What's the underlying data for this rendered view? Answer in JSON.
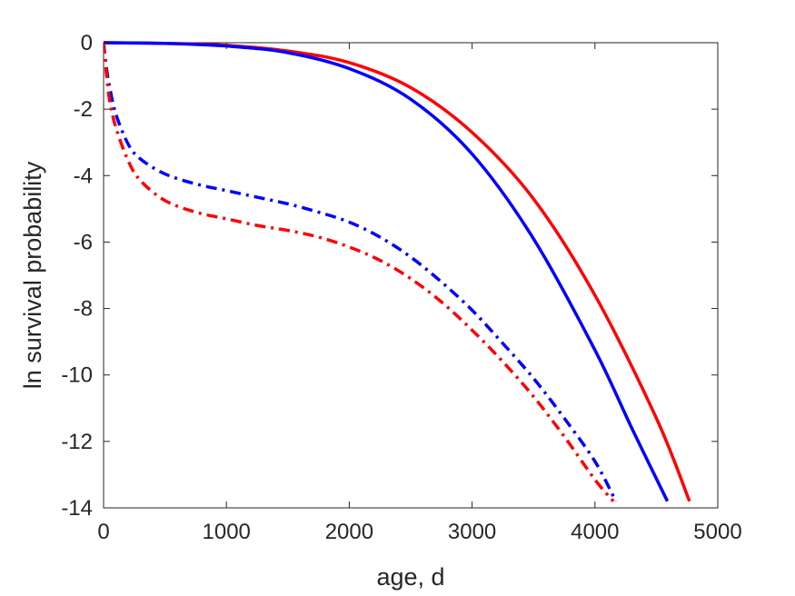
{
  "chart_data": {
    "type": "line",
    "title": "",
    "xlabel": "age, d",
    "ylabel": "ln survival probability",
    "xlim": [
      0,
      5000
    ],
    "ylim": [
      -14,
      0
    ],
    "xticks": [
      0,
      1000,
      2000,
      3000,
      4000,
      5000
    ],
    "yticks": [
      0,
      -2,
      -4,
      -6,
      -8,
      -10,
      -12,
      -14
    ],
    "xtick_labels": [
      "0",
      "1000",
      "2000",
      "3000",
      "4000",
      "5000"
    ],
    "ytick_labels": [
      "0",
      "-2",
      "-4",
      "-6",
      "-8",
      "-10",
      "-12",
      "-14"
    ],
    "grid": false,
    "legend": "none",
    "series": [
      {
        "color": "#ff0000",
        "style": "solid",
        "x": [
          0,
          500,
          1000,
          1500,
          2000,
          2500,
          3000,
          3500,
          4000,
          4500,
          4770
        ],
        "y": [
          0,
          -0.02,
          -0.08,
          -0.25,
          -0.6,
          -1.35,
          -2.7,
          -4.7,
          -7.6,
          -11.3,
          -13.8
        ]
      },
      {
        "color": "#0000ff",
        "style": "solid",
        "x": [
          0,
          500,
          1000,
          1500,
          2000,
          2500,
          3000,
          3500,
          4000,
          4300,
          4590
        ],
        "y": [
          0,
          -0.02,
          -0.1,
          -0.3,
          -0.78,
          -1.7,
          -3.35,
          -5.9,
          -9.25,
          -11.6,
          -13.8
        ]
      },
      {
        "color": "#0000ff",
        "style": "dashdot",
        "x": [
          0,
          25,
          50,
          100,
          200,
          300,
          500,
          750,
          1000,
          1250,
          1500,
          1750,
          2000,
          2250,
          2500,
          2750,
          3000,
          3250,
          3500,
          3750,
          4000,
          4170
        ],
        "y": [
          0,
          -0.8,
          -1.35,
          -2.15,
          -3.05,
          -3.5,
          -3.95,
          -4.25,
          -4.45,
          -4.65,
          -4.85,
          -5.1,
          -5.4,
          -5.85,
          -6.45,
          -7.2,
          -8.05,
          -9.05,
          -10.1,
          -11.3,
          -12.6,
          -13.8
        ]
      },
      {
        "color": "#ff0000",
        "style": "dashdot",
        "x": [
          0,
          25,
          50,
          100,
          200,
          300,
          500,
          750,
          1000,
          1250,
          1500,
          1750,
          2000,
          2250,
          2500,
          2750,
          3000,
          3250,
          3500,
          3750,
          4000,
          4150
        ],
        "y": [
          0,
          -1.0,
          -1.75,
          -2.55,
          -3.55,
          -4.15,
          -4.75,
          -5.1,
          -5.3,
          -5.5,
          -5.65,
          -5.85,
          -6.15,
          -6.55,
          -7.1,
          -7.8,
          -8.65,
          -9.6,
          -10.65,
          -11.85,
          -13.15,
          -13.8
        ]
      }
    ]
  }
}
